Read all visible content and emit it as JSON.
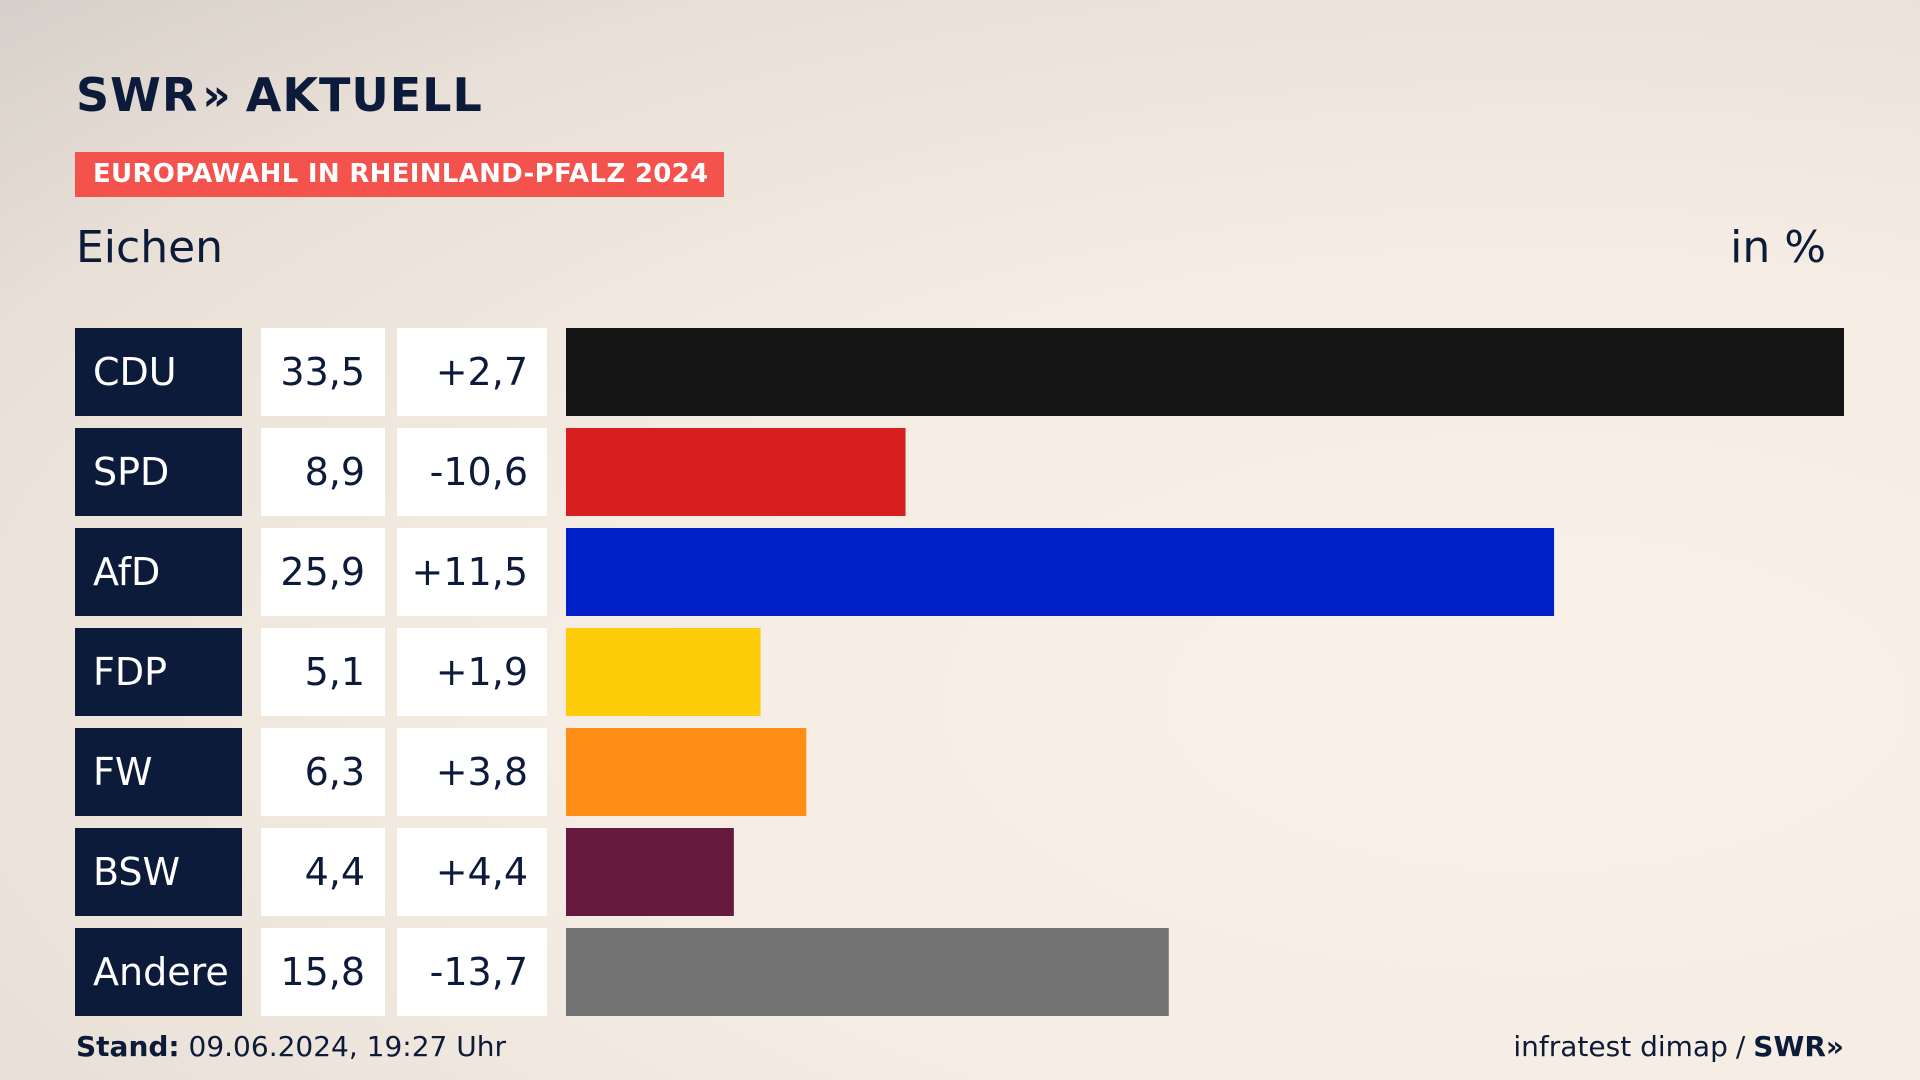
{
  "brand": {
    "name": "SWR",
    "section": "AKTUELL"
  },
  "banner": "EUROPAWAHL IN RHEINLAND-PFALZ 2024",
  "region": "Eichen",
  "unit": "in %",
  "footer": {
    "stand_label": "Stand:",
    "stand_value": "09.06.2024, 19:27 Uhr",
    "source": "infratest dimap",
    "separator": "/",
    "source_brand": "SWR"
  },
  "chart_data": {
    "type": "bar",
    "orientation": "horizontal",
    "categories": [
      "CDU",
      "SPD",
      "AfD",
      "FDP",
      "FW",
      "BSW",
      "Andere"
    ],
    "values": [
      33.5,
      8.9,
      25.9,
      5.1,
      6.3,
      4.4,
      15.8
    ],
    "value_labels": [
      "33,5",
      "8,9",
      "25,9",
      "5,1",
      "6,3",
      "4,4",
      "15,8"
    ],
    "change_labels": [
      "+2,7",
      "-10,6",
      "+11,5",
      "+1,9",
      "+3,8",
      "+4,4",
      "-13,7"
    ],
    "colors": [
      "#141414",
      "#d81f1f",
      "#0021c8",
      "#ffcc09",
      "#ff8e16",
      "#661a3e",
      "#737373"
    ],
    "xlim": [
      0,
      33.5
    ],
    "grid": false,
    "legend": "none"
  }
}
